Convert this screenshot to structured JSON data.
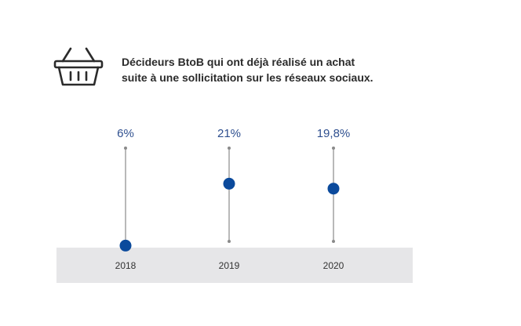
{
  "header": {
    "icon": "basket-icon",
    "title_line1": "Décideurs BtoB qui ont déjà réalisé un achat",
    "title_line2": "suite à une sollicitation sur les réseaux sociaux."
  },
  "chart_data": {
    "type": "scatter",
    "title": "Décideurs BtoB qui ont déjà réalisé un achat suite à une sollicitation sur les réseaux sociaux.",
    "categories": [
      "2018",
      "2019",
      "2020"
    ],
    "values": [
      6,
      21,
      19.8
    ],
    "value_labels": [
      "6%",
      "21%",
      "19,8%"
    ],
    "unit": "%",
    "ylim": [
      0,
      30
    ],
    "grid": false,
    "colors": {
      "marker": "#0b4a9c",
      "stem": "#8a8a8a",
      "label": "#2e4f8f",
      "band": "#e6e6e8"
    }
  }
}
